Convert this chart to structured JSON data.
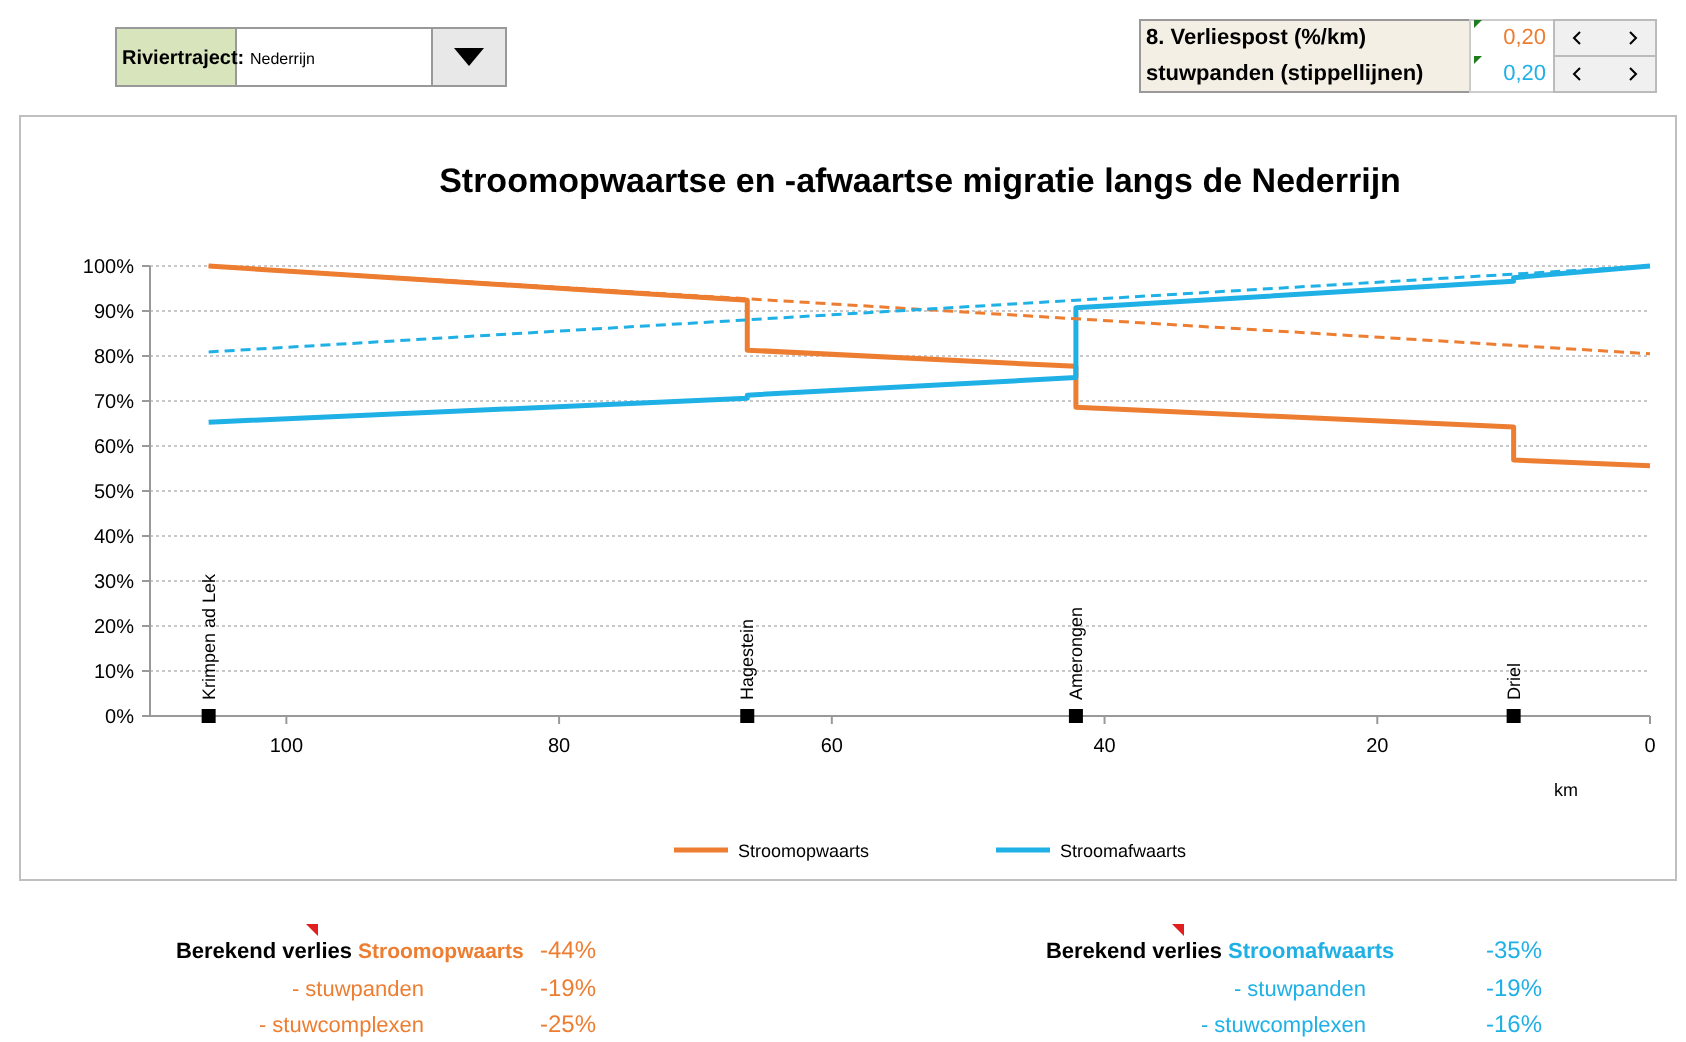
{
  "chart_data": {
    "type": "line",
    "title": "Stroomopwaartse en -afwaartse migratie langs de Nederrijn",
    "xlabel": "km",
    "xlim": [
      110,
      0
    ],
    "xticks": [
      100,
      80,
      60,
      40,
      20,
      0
    ],
    "ylim": [
      0,
      100
    ],
    "yticks": [
      {
        "value": 0,
        "label": "0%"
      },
      {
        "value": 10,
        "label": "10%"
      },
      {
        "value": 20,
        "label": "20%"
      },
      {
        "value": 30,
        "label": "30%"
      },
      {
        "value": 40,
        "label": "40%"
      },
      {
        "value": 50,
        "label": "50%"
      },
      {
        "value": 60,
        "label": "60%"
      },
      {
        "value": 70,
        "label": "70%"
      },
      {
        "value": 80,
        "label": "80%"
      },
      {
        "value": 90,
        "label": "90%"
      },
      {
        "value": 100,
        "label": "100%"
      }
    ],
    "grid": "y",
    "legend": "bottom",
    "series": [
      {
        "name": "Stroomopwaarts",
        "color": "#ed7d31",
        "x": [
          105.7,
          66.2,
          66.2,
          42.1,
          42.1,
          10,
          10,
          0
        ],
        "values": [
          100,
          92.4,
          81.3,
          77.7,
          68.6,
          64.2,
          56.9,
          55.6
        ]
      },
      {
        "name": "Stroomafwaarts",
        "color": "#1fb0e6",
        "x": [
          105.7,
          66.2,
          66.2,
          42.1,
          42.1,
          10,
          10,
          0
        ],
        "values": [
          65.3,
          70.6,
          71.3,
          75.2,
          90.7,
          96.6,
          97.4,
          100
        ]
      },
      {
        "color": "#ed7d31",
        "line_style": "dashed",
        "x": [
          105.7,
          0
        ],
        "values": [
          100,
          80.5
        ]
      },
      {
        "color": "#1fb0e6",
        "line_style": "dashed",
        "x": [
          105.7,
          0
        ],
        "values": [
          80.9,
          100
        ]
      },
      {
        "type": "scatter",
        "marker": "square",
        "color": "#000000",
        "x": [
          105.7,
          66.2,
          42.1,
          10
        ],
        "values": [
          0,
          0,
          0,
          0
        ]
      }
    ],
    "annotations": [
      {
        "text": "Krimpen ad Lek",
        "x": 105.7,
        "y": 0
      },
      {
        "text": "Hagestein",
        "x": 66.2,
        "y": 0
      },
      {
        "text": "Amerongen",
        "x": 42.1,
        "y": 0
      },
      {
        "text": "Driel",
        "x": 10,
        "y": 0
      },
      "Riviertraject:",
      "Nederrijn",
      "8. Verliespost (%/km)",
      "0,20",
      "stuwpanden (stippellijnen)",
      "0,20",
      "Berekend verlies",
      "Stroomopwaarts",
      "-44%",
      "- stuwpanden",
      "-19%",
      "- stuwcomplexen",
      "-25%",
      "Berekend verlies",
      "Stroomafwaarts",
      "-35%",
      "- stuwpanden",
      "-19%",
      "- stuwcomplexen",
      "-16%"
    ]
  }
}
